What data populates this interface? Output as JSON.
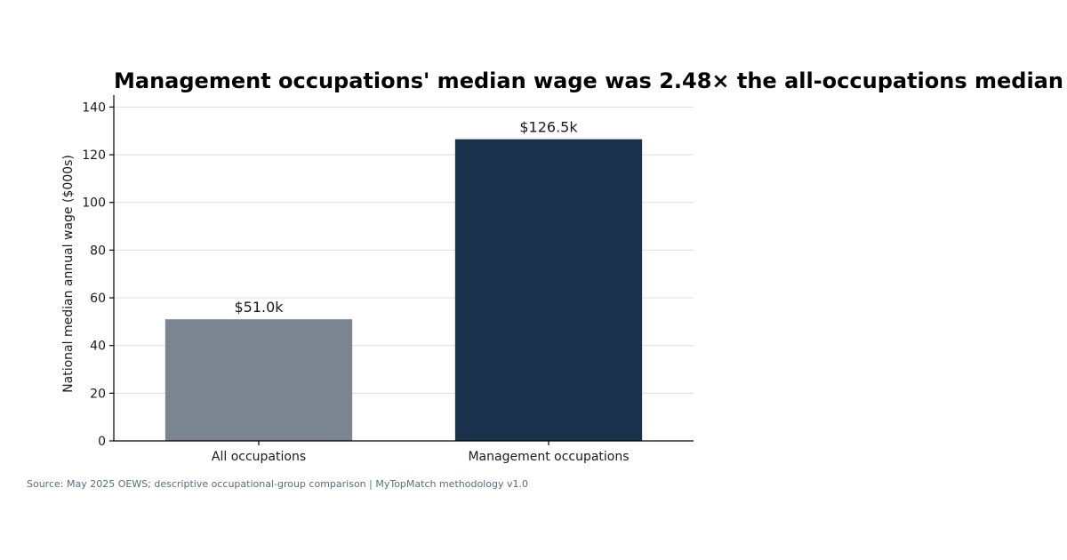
{
  "chart_data": {
    "type": "bar",
    "title": "Management occupations' median wage was 2.48× the all-occupations median",
    "ylabel": "National median annual wage ($000s)",
    "xlabel": "",
    "categories": [
      "All occupations",
      "Management occupations"
    ],
    "values": [
      51.0,
      126.5
    ],
    "data_labels": [
      "$51.0k",
      "$126.5k"
    ],
    "colors": [
      "#7a8591",
      "#1a324c"
    ],
    "ylim": [
      0,
      145
    ],
    "yticks": [
      0,
      20,
      40,
      60,
      80,
      100,
      120,
      140
    ],
    "grid": true,
    "legend": "none"
  },
  "footer": {
    "source": "Source: May 2025 OEWS; descriptive occupational-group comparison | MyTopMatch methodology v1.0"
  }
}
